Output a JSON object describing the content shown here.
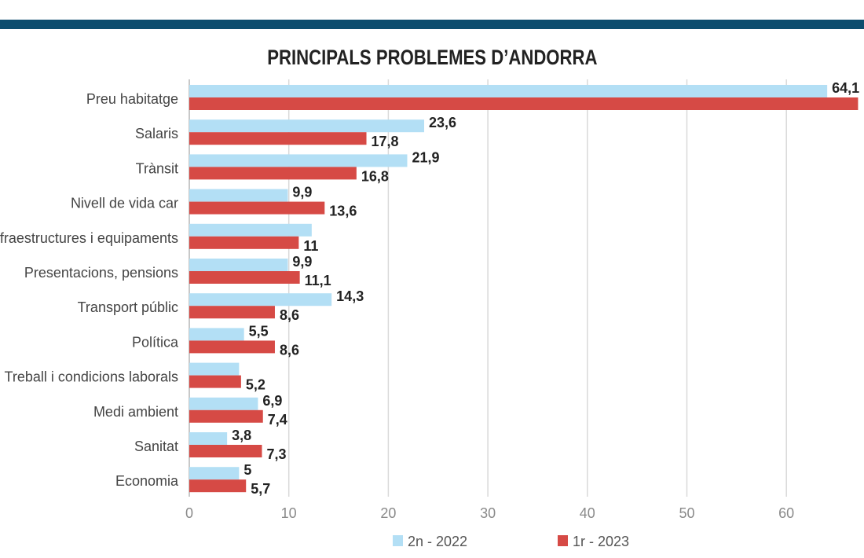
{
  "colors": {
    "band": "#0d4d6e",
    "series_2022": "#b3dff5",
    "series_2023": "#d64a45",
    "grid": "#d9d9d9",
    "category_text": "#444444",
    "value_text": "#222222",
    "tick_text": "#8a8a8a"
  },
  "chart_data": {
    "type": "bar",
    "orientation": "horizontal",
    "title": "PRINCIPALS PROBLEMES D’ANDORRA",
    "categories": [
      "Preu habitatge",
      "Salaris",
      "Trànsit",
      "Nivell de vida car",
      "Infraestructures i equipaments",
      "Presentacions, pensions",
      "Transport públic",
      "Política",
      "Treball i condicions laborals",
      "Medi ambient",
      "Sanitat",
      "Economia"
    ],
    "series": [
      {
        "name": "2n - 2022",
        "values": [
          64.1,
          23.6,
          21.9,
          9.9,
          12.3,
          9.9,
          14.3,
          5.5,
          5.0,
          6.9,
          3.8,
          5.0
        ],
        "labels": [
          "64,1",
          "23,6",
          "21,9",
          "9,9",
          "",
          "9,9",
          "14,3",
          "5,5",
          "",
          "6,9",
          "3,8",
          "5"
        ]
      },
      {
        "name": "1r - 2023",
        "values": [
          67.2,
          17.8,
          16.8,
          13.6,
          11.0,
          11.1,
          8.6,
          8.6,
          5.2,
          7.4,
          7.3,
          5.7
        ],
        "labels": [
          "",
          "17,8",
          "16,8",
          "13,6",
          "11",
          "11,1",
          "8,6",
          "8,6",
          "5,2",
          "7,4",
          "7,3",
          "5,7"
        ]
      }
    ],
    "xticks": [
      0,
      10,
      20,
      30,
      40,
      50,
      60
    ],
    "xlim": [
      0,
      68
    ],
    "grid": "vertical",
    "legend_position": "bottom"
  }
}
